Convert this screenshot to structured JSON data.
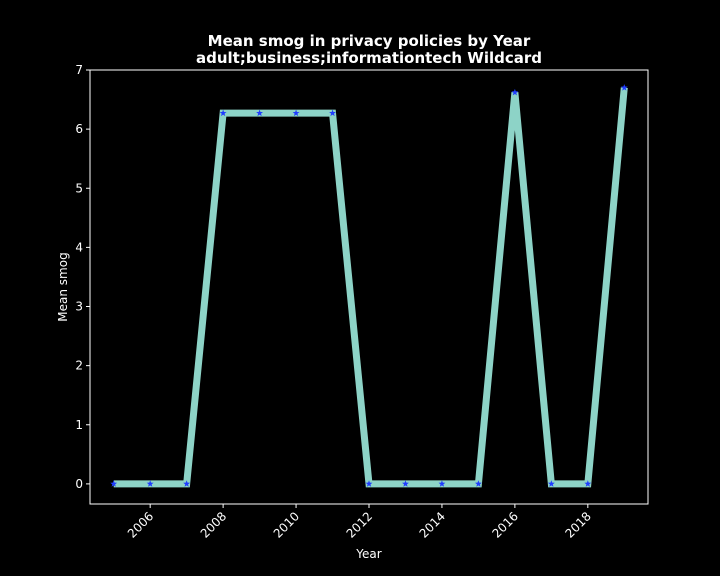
{
  "chart_data": {
    "type": "line",
    "title": "Mean smog in privacy policies by Year",
    "subtitle": "adult;business;informationtech Wildcard",
    "xlabel": "Year",
    "ylabel": "Mean smog",
    "x": [
      2005,
      2006,
      2007,
      2008,
      2009,
      2010,
      2011,
      2012,
      2013,
      2014,
      2015,
      2016,
      2017,
      2018,
      2019
    ],
    "series": [
      {
        "values": [
          0,
          0,
          0,
          6.27,
          6.27,
          6.27,
          6.27,
          0,
          0,
          0,
          0,
          6.62,
          0,
          0,
          6.7
        ]
      }
    ],
    "xlim": [
      2004.35,
      2019.65
    ],
    "ylim": [
      -0.34,
      7.0
    ],
    "xticks": [
      "2006",
      "2008",
      "2010",
      "2012",
      "2014",
      "2016",
      "2018"
    ],
    "yticks": [
      "0",
      "1",
      "2",
      "3",
      "4",
      "5",
      "6",
      "7"
    ],
    "grid": false,
    "line_color": "#8dd3c7",
    "marker_color": "#1f3cff",
    "marker": "star",
    "background": "#000000",
    "axes_color": "#ffffff"
  }
}
